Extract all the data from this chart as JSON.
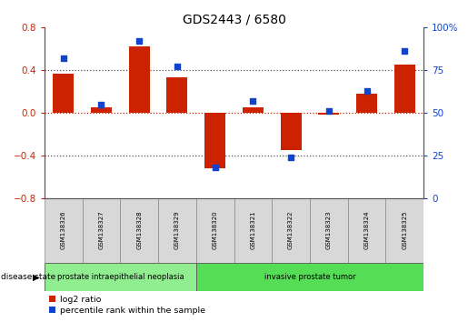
{
  "title": "GDS2443 / 6580",
  "samples": [
    "GSM138326",
    "GSM138327",
    "GSM138328",
    "GSM138329",
    "GSM138320",
    "GSM138321",
    "GSM138322",
    "GSM138323",
    "GSM138324",
    "GSM138325"
  ],
  "log2_ratio": [
    0.37,
    0.05,
    0.62,
    0.33,
    -0.52,
    0.05,
    -0.35,
    -0.02,
    0.18,
    0.45
  ],
  "percentile_rank": [
    82,
    55,
    92,
    77,
    18,
    57,
    24,
    51,
    63,
    86
  ],
  "disease_groups": [
    {
      "label": "prostate intraepithelial neoplasia",
      "start": 0,
      "end": 4,
      "color": "#90ee90"
    },
    {
      "label": "invasive prostate tumor",
      "start": 4,
      "end": 10,
      "color": "#55dd55"
    }
  ],
  "ylim_left": [
    -0.8,
    0.8
  ],
  "ylim_right": [
    0,
    100
  ],
  "yticks_left": [
    -0.8,
    -0.4,
    0.0,
    0.4,
    0.8
  ],
  "yticks_right": [
    0,
    25,
    50,
    75,
    100
  ],
  "ytick_labels_right": [
    "0",
    "25",
    "50",
    "75",
    "100%"
  ],
  "bar_color_red": "#cc2200",
  "bar_color_blue": "#1144cc",
  "dotted_line_color_red": "#cc2200",
  "dotted_line_color_black": "#555555",
  "legend_red_label": "log2 ratio",
  "legend_blue_label": "percentile rank within the sample",
  "disease_state_label": "disease state",
  "bar_width": 0.55,
  "sample_box_color": "#d8d8d8",
  "bg_color": "#ffffff"
}
